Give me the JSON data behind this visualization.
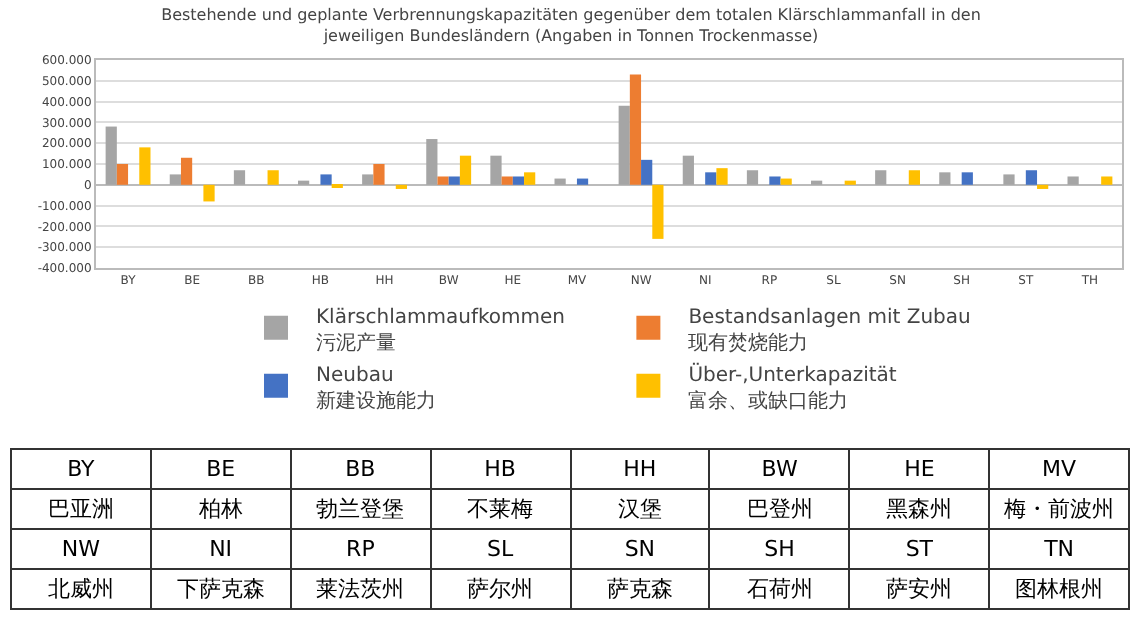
{
  "chart_data": {
    "type": "bar",
    "title": "Bestehende und geplante Verbrennungskapazitäten gegenüber dem totalen Klärschlammanfall in den jeweiligen Bundesländern (Angaben in Tonnen Trockenmasse)",
    "categories": [
      "BY",
      "BE",
      "BB",
      "HB",
      "HH",
      "BW",
      "HE",
      "MV",
      "NW",
      "NI",
      "RP",
      "SL",
      "SN",
      "SH",
      "ST",
      "TH"
    ],
    "series": [
      {
        "name": "Klärschlammaufkommen\n污泥产量",
        "color": "#a5a5a5",
        "values": [
          280000,
          50000,
          70000,
          20000,
          50000,
          220000,
          140000,
          30000,
          380000,
          140000,
          70000,
          20000,
          70000,
          60000,
          50000,
          40000
        ]
      },
      {
        "name": "Bestandsanlagen mit Zubau\n现有焚烧能力",
        "color": "#ed7d31",
        "values": [
          100000,
          130000,
          null,
          null,
          100000,
          40000,
          40000,
          null,
          530000,
          null,
          null,
          null,
          null,
          null,
          null,
          null
        ]
      },
      {
        "name": "Neubau\n新建设施能力",
        "color": "#4472c4",
        "values": [
          null,
          null,
          null,
          50000,
          null,
          40000,
          40000,
          30000,
          120000,
          60000,
          40000,
          null,
          null,
          60000,
          70000,
          null
        ]
      },
      {
        "name": "Über-,Unterkapazität\n富余、或缺口能力",
        "color": "#ffc000",
        "values": [
          180000,
          -80000,
          70000,
          -10000,
          -20000,
          140000,
          60000,
          null,
          -260000,
          80000,
          30000,
          20000,
          70000,
          null,
          -20000,
          40000
        ]
      }
    ],
    "ylim": [
      -400000,
      600000
    ],
    "yticks": [
      {
        "value": -400000,
        "label": "-400.000"
      },
      {
        "value": -300000,
        "label": "-300.000"
      },
      {
        "value": -200000,
        "label": "-200.000"
      },
      {
        "value": -100000,
        "label": "-100.000"
      },
      {
        "value": 0,
        "label": "0"
      },
      {
        "value": 100000,
        "label": "100.000"
      },
      {
        "value": 200000,
        "label": "200.000"
      },
      {
        "value": 300000,
        "label": "300.000"
      },
      {
        "value": 400000,
        "label": "400.000"
      },
      {
        "value": 500000,
        "label": "500.000"
      },
      {
        "value": 600000,
        "label": "600.000"
      }
    ],
    "grid": "y",
    "legend": "bottom",
    "annotations": [
      "BY",
      "BE",
      "BB",
      "HB",
      "HH",
      "BW",
      "HE",
      "MV",
      "巴亚洲",
      "柏林",
      "勃兰登堡",
      "不莱梅",
      "汉堡",
      "巴登州",
      "黑森州",
      "梅・前波州",
      "NW",
      "NI",
      "RP",
      "SL",
      "SN",
      "SH",
      "ST",
      "TN",
      "北威州",
      "下萨克森",
      "莱法茨州",
      "萨尔州",
      "萨克森",
      "石荷州",
      "萨安州",
      "图林根州"
    ]
  }
}
